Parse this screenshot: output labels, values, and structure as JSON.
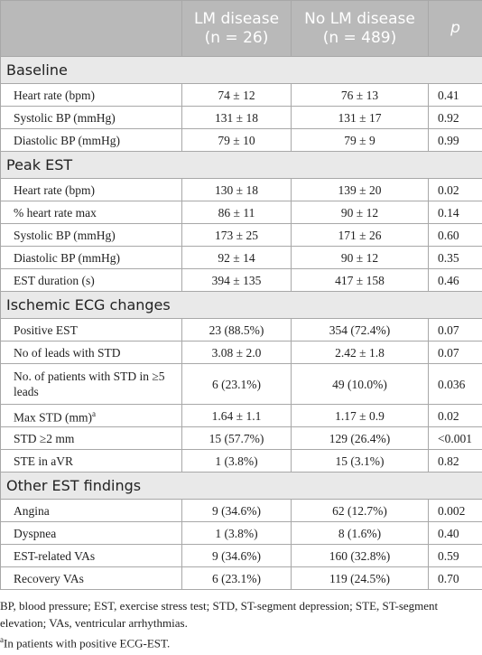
{
  "table": {
    "header": [
      "",
      "LM disease",
      "No LM disease",
      "p"
    ],
    "header_sub": [
      "",
      "(n = 26)",
      "(n = 489)",
      ""
    ],
    "sections": [
      {
        "title": "Baseline",
        "rows": [
          [
            "Heart rate (bpm)",
            "74 ± 12",
            "76 ± 13",
            "0.41"
          ],
          [
            "Systolic BP (mmHg)",
            "131 ± 18",
            "131 ± 17",
            "0.92"
          ],
          [
            "Diastolic BP (mmHg)",
            "79 ± 10",
            "79 ± 9",
            "0.99"
          ]
        ]
      },
      {
        "title": "Peak EST",
        "rows": [
          [
            "Heart rate (bpm)",
            "130 ± 18",
            "139 ± 20",
            "0.02"
          ],
          [
            "% heart rate max",
            "86 ± 11",
            "90 ± 12",
            "0.14"
          ],
          [
            "Systolic BP (mmHg)",
            "173 ± 25",
            "171 ± 26",
            "0.60"
          ],
          [
            "Diastolic BP (mmHg)",
            "92 ± 14",
            "90 ± 12",
            "0.35"
          ],
          [
            "EST duration (s)",
            "394 ± 135",
            "417 ± 158",
            "0.46"
          ]
        ]
      },
      {
        "title": "Ischemic ECG changes",
        "rows": [
          [
            "Positive EST",
            "23 (88.5%)",
            "354 (72.4%)",
            "0.07"
          ],
          [
            "No of leads with STD",
            "3.08 ± 2.0",
            "2.42 ± 1.8",
            "0.07"
          ],
          [
            "No. of patients with STD in ≥5 leads",
            "6 (23.1%)",
            "49 (10.0%)",
            "0.036"
          ],
          [
            "Max STD (mm)",
            "1.64 ± 1.1",
            "1.17 ± 0.9",
            "0.02"
          ],
          [
            "STD ≥2 mm",
            "15 (57.7%)",
            "129 (26.4%)",
            "<0.001"
          ],
          [
            "STE in aVR",
            "1 (3.8%)",
            "15 (3.1%)",
            "0.82"
          ]
        ]
      },
      {
        "title": "Other EST findings",
        "rows": [
          [
            "Angina",
            "9 (34.6%)",
            "62 (12.7%)",
            "0.002"
          ],
          [
            "Dyspnea",
            "1 (3.8%)",
            "8 (1.6%)",
            "0.40"
          ],
          [
            "EST-related VAs",
            "9 (34.6%)",
            "160 (32.8%)",
            "0.59"
          ],
          [
            "Recovery VAs",
            "6 (23.1%)",
            "119 (24.5%)",
            "0.70"
          ]
        ]
      }
    ],
    "footnote_sup": "a",
    "footnotes": [
      "BP, blood pressure; EST, exercise stress test; STD, ST-segment depression; STE, ST-segment elevation; VAs, ventricular arrhythmias.",
      "In patients with positive ECG-EST."
    ]
  }
}
